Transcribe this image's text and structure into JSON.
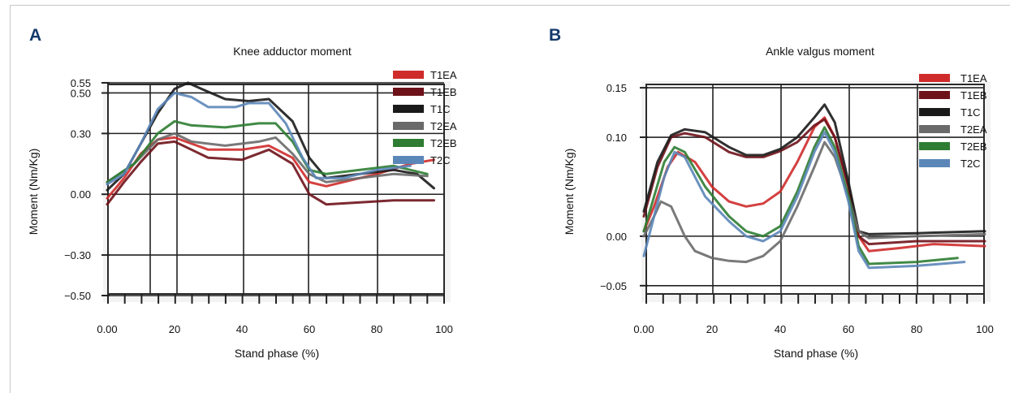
{
  "chart_data": [
    {
      "type": "line",
      "panel_label": "A",
      "title": "Knee adductor moment",
      "xlabel": "Stand phase (%)",
      "ylabel": "Moment (Nm/Kg)",
      "xlim": [
        0,
        100
      ],
      "ylim": [
        -0.5,
        0.55
      ],
      "x_ticks": [
        "0.00",
        "20",
        "40",
        "60",
        "80",
        "100"
      ],
      "y_ticks": [
        "0.55",
        "0.50",
        "0.30",
        "0.00",
        "−0.30",
        "−0.50"
      ],
      "y_tick_values": [
        0.55,
        0.5,
        0.3,
        0.0,
        -0.3,
        -0.5
      ],
      "grid": true,
      "legend_position": "top-right",
      "series": [
        {
          "name": "T1EA",
          "color": "#cf2b2b",
          "points": [
            [
              0,
              -0.02
            ],
            [
              5,
              0.08
            ],
            [
              10,
              0.2
            ],
            [
              15,
              0.27
            ],
            [
              20,
              0.28
            ],
            [
              25,
              0.25
            ],
            [
              30,
              0.22
            ],
            [
              40,
              0.22
            ],
            [
              48,
              0.24
            ],
            [
              55,
              0.18
            ],
            [
              60,
              0.06
            ],
            [
              65,
              0.04
            ],
            [
              70,
              0.06
            ],
            [
              80,
              0.1
            ],
            [
              90,
              0.15
            ],
            [
              97,
              0.17
            ]
          ]
        },
        {
          "name": "T1EB",
          "color": "#6e1219",
          "points": [
            [
              0,
              -0.05
            ],
            [
              5,
              0.06
            ],
            [
              10,
              0.16
            ],
            [
              15,
              0.25
            ],
            [
              20,
              0.26
            ],
            [
              25,
              0.22
            ],
            [
              30,
              0.18
            ],
            [
              40,
              0.17
            ],
            [
              48,
              0.22
            ],
            [
              55,
              0.15
            ],
            [
              60,
              0.0
            ],
            [
              65,
              -0.05
            ],
            [
              75,
              -0.04
            ],
            [
              85,
              -0.03
            ],
            [
              97,
              -0.03
            ]
          ]
        },
        {
          "name": "T1C",
          "color": "#1a1a1a",
          "points": [
            [
              0,
              0.02
            ],
            [
              5,
              0.1
            ],
            [
              10,
              0.25
            ],
            [
              15,
              0.4
            ],
            [
              20,
              0.52
            ],
            [
              24,
              0.55
            ],
            [
              28,
              0.52
            ],
            [
              35,
              0.47
            ],
            [
              42,
              0.46
            ],
            [
              48,
              0.47
            ],
            [
              55,
              0.36
            ],
            [
              60,
              0.18
            ],
            [
              65,
              0.08
            ],
            [
              75,
              0.1
            ],
            [
              85,
              0.12
            ],
            [
              92,
              0.1
            ],
            [
              97,
              0.03
            ]
          ]
        },
        {
          "name": "T2EA",
          "color": "#6a6a6a",
          "points": [
            [
              0,
              0.06
            ],
            [
              8,
              0.15
            ],
            [
              15,
              0.27
            ],
            [
              20,
              0.3
            ],
            [
              25,
              0.26
            ],
            [
              35,
              0.24
            ],
            [
              45,
              0.26
            ],
            [
              50,
              0.28
            ],
            [
              55,
              0.2
            ],
            [
              60,
              0.1
            ],
            [
              65,
              0.06
            ],
            [
              75,
              0.08
            ],
            [
              85,
              0.1
            ],
            [
              95,
              0.09
            ]
          ]
        },
        {
          "name": "T2EB",
          "color": "#2e7d32",
          "points": [
            [
              0,
              0.06
            ],
            [
              8,
              0.15
            ],
            [
              15,
              0.3
            ],
            [
              20,
              0.36
            ],
            [
              25,
              0.34
            ],
            [
              35,
              0.33
            ],
            [
              45,
              0.35
            ],
            [
              50,
              0.35
            ],
            [
              55,
              0.26
            ],
            [
              60,
              0.12
            ],
            [
              65,
              0.1
            ],
            [
              75,
              0.12
            ],
            [
              85,
              0.14
            ],
            [
              95,
              0.1
            ]
          ]
        },
        {
          "name": "T2C",
          "color": "#5b86b8",
          "points": [
            [
              0,
              0.05
            ],
            [
              5,
              0.1
            ],
            [
              10,
              0.25
            ],
            [
              15,
              0.42
            ],
            [
              20,
              0.5
            ],
            [
              25,
              0.48
            ],
            [
              30,
              0.43
            ],
            [
              38,
              0.43
            ],
            [
              42,
              0.45
            ],
            [
              48,
              0.45
            ],
            [
              53,
              0.35
            ],
            [
              58,
              0.18
            ],
            [
              62,
              0.08
            ],
            [
              70,
              0.08
            ],
            [
              80,
              0.12
            ],
            [
              90,
              0.14
            ]
          ]
        }
      ]
    },
    {
      "type": "line",
      "panel_label": "B",
      "title": "Ankle valgus moment",
      "xlabel": "Stand phase (%)",
      "ylabel": "Moment (Nm/Kg)",
      "xlim": [
        0,
        100
      ],
      "ylim": [
        -0.06,
        0.155
      ],
      "x_ticks": [
        "0.00",
        "20",
        "40",
        "60",
        "80",
        "100"
      ],
      "y_ticks": [
        "0.15",
        "0.10",
        "0.00",
        "−0.05"
      ],
      "y_tick_values": [
        0.15,
        0.1,
        0.0,
        -0.05
      ],
      "grid": true,
      "legend_position": "top-right",
      "series": [
        {
          "name": "T1EA",
          "color": "#cf2b2b",
          "points": [
            [
              0,
              0.005
            ],
            [
              3,
              0.03
            ],
            [
              7,
              0.07
            ],
            [
              10,
              0.085
            ],
            [
              15,
              0.075
            ],
            [
              20,
              0.05
            ],
            [
              25,
              0.035
            ],
            [
              30,
              0.03
            ],
            [
              35,
              0.033
            ],
            [
              40,
              0.045
            ],
            [
              45,
              0.075
            ],
            [
              50,
              0.11
            ],
            [
              53,
              0.12
            ],
            [
              56,
              0.1
            ],
            [
              60,
              0.05
            ],
            [
              63,
              0.0
            ],
            [
              66,
              -0.015
            ],
            [
              75,
              -0.012
            ],
            [
              85,
              -0.008
            ],
            [
              100,
              -0.01
            ]
          ]
        },
        {
          "name": "T1EB",
          "color": "#6e1219",
          "points": [
            [
              0,
              0.02
            ],
            [
              4,
              0.07
            ],
            [
              8,
              0.1
            ],
            [
              12,
              0.104
            ],
            [
              18,
              0.1
            ],
            [
              25,
              0.085
            ],
            [
              30,
              0.08
            ],
            [
              35,
              0.08
            ],
            [
              40,
              0.086
            ],
            [
              45,
              0.095
            ],
            [
              50,
              0.112
            ],
            [
              53,
              0.118
            ],
            [
              56,
              0.1
            ],
            [
              60,
              0.05
            ],
            [
              63,
              0.0
            ],
            [
              66,
              -0.008
            ],
            [
              80,
              -0.005
            ],
            [
              100,
              -0.005
            ]
          ]
        },
        {
          "name": "T1C",
          "color": "#1a1a1a",
          "points": [
            [
              0,
              0.025
            ],
            [
              4,
              0.075
            ],
            [
              8,
              0.102
            ],
            [
              12,
              0.108
            ],
            [
              18,
              0.105
            ],
            [
              25,
              0.09
            ],
            [
              30,
              0.082
            ],
            [
              35,
              0.082
            ],
            [
              40,
              0.088
            ],
            [
              45,
              0.1
            ],
            [
              50,
              0.12
            ],
            [
              53,
              0.133
            ],
            [
              56,
              0.115
            ],
            [
              60,
              0.055
            ],
            [
              63,
              0.005
            ],
            [
              66,
              0.002
            ],
            [
              80,
              0.003
            ],
            [
              100,
              0.005
            ]
          ]
        },
        {
          "name": "T2EA",
          "color": "#6a6a6a",
          "points": [
            [
              0,
              0.0
            ],
            [
              3,
              0.02
            ],
            [
              5,
              0.035
            ],
            [
              8,
              0.03
            ],
            [
              12,
              0.0
            ],
            [
              15,
              -0.015
            ],
            [
              20,
              -0.022
            ],
            [
              25,
              -0.025
            ],
            [
              30,
              -0.026
            ],
            [
              35,
              -0.02
            ],
            [
              40,
              -0.005
            ],
            [
              45,
              0.03
            ],
            [
              50,
              0.07
            ],
            [
              53,
              0.095
            ],
            [
              56,
              0.08
            ],
            [
              60,
              0.04
            ],
            [
              63,
              0.005
            ],
            [
              66,
              -0.002
            ],
            [
              80,
              0.0
            ],
            [
              100,
              0.002
            ]
          ]
        },
        {
          "name": "T2EB",
          "color": "#2e7d32",
          "points": [
            [
              0,
              0.005
            ],
            [
              3,
              0.04
            ],
            [
              6,
              0.075
            ],
            [
              9,
              0.09
            ],
            [
              12,
              0.085
            ],
            [
              18,
              0.05
            ],
            [
              25,
              0.02
            ],
            [
              30,
              0.005
            ],
            [
              35,
              0.0
            ],
            [
              40,
              0.01
            ],
            [
              45,
              0.045
            ],
            [
              50,
              0.09
            ],
            [
              53,
              0.11
            ],
            [
              56,
              0.09
            ],
            [
              60,
              0.04
            ],
            [
              63,
              -0.01
            ],
            [
              66,
              -0.028
            ],
            [
              80,
              -0.026
            ],
            [
              92,
              -0.022
            ]
          ]
        },
        {
          "name": "T2C",
          "color": "#5b86b8",
          "points": [
            [
              0,
              -0.02
            ],
            [
              3,
              0.02
            ],
            [
              6,
              0.06
            ],
            [
              9,
              0.085
            ],
            [
              12,
              0.08
            ],
            [
              18,
              0.04
            ],
            [
              25,
              0.015
            ],
            [
              30,
              0.0
            ],
            [
              35,
              -0.005
            ],
            [
              40,
              0.005
            ],
            [
              45,
              0.04
            ],
            [
              50,
              0.085
            ],
            [
              53,
              0.105
            ],
            [
              56,
              0.085
            ],
            [
              60,
              0.035
            ],
            [
              63,
              -0.015
            ],
            [
              66,
              -0.032
            ],
            [
              80,
              -0.03
            ],
            [
              94,
              -0.026
            ]
          ]
        }
      ]
    }
  ]
}
